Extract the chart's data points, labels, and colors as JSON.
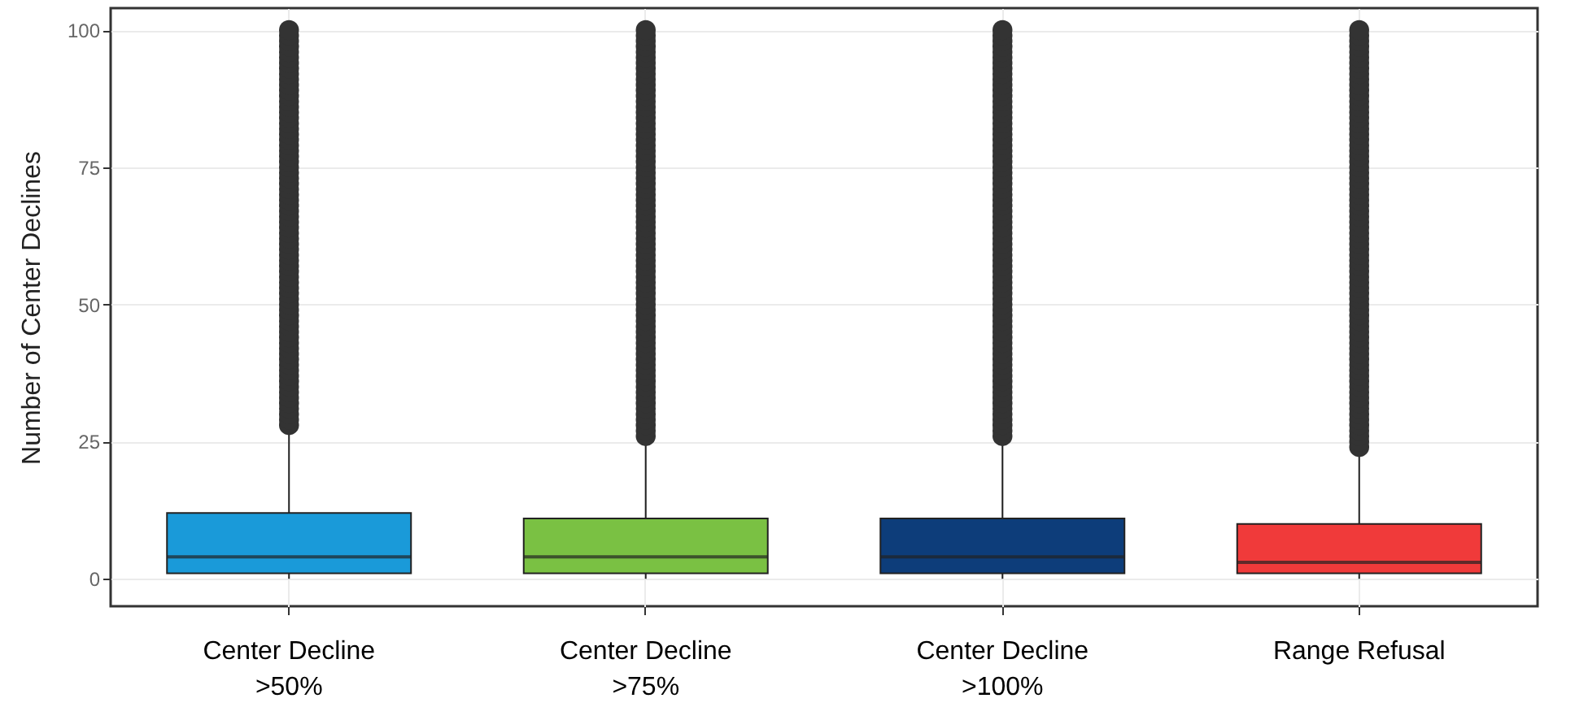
{
  "chart_data": {
    "type": "box",
    "ylabel": "Number of Center Declines",
    "categories": [
      "Center Decline\n>50%",
      "Center Decline\n>75%",
      "Center Decline\n>100%",
      "Range Refusal"
    ],
    "colors": [
      "#1a9ad9",
      "#7ac143",
      "#0d3d7a",
      "#f03a3a"
    ],
    "boxes": [
      {
        "low": 0,
        "q1": 1,
        "median": 4,
        "q3": 12,
        "high": 27,
        "outliers": [
          28,
          29,
          30,
          31,
          32,
          33,
          34,
          35,
          36,
          37,
          38,
          39,
          40,
          41,
          42,
          43,
          44,
          45,
          46,
          47,
          48,
          49,
          50,
          51,
          52,
          53,
          54,
          55,
          56,
          57,
          58,
          59,
          60,
          61,
          62,
          63,
          64,
          65,
          66,
          67,
          68,
          69,
          70,
          71,
          72,
          73,
          74,
          75,
          76,
          77,
          78,
          79,
          80,
          81,
          82,
          83,
          84,
          85,
          86,
          87,
          88,
          89,
          90,
          91,
          92,
          93,
          94,
          95,
          96,
          97,
          98,
          99,
          100
        ]
      },
      {
        "low": 0,
        "q1": 1,
        "median": 4,
        "q3": 11,
        "high": 25,
        "outliers": [
          26,
          27,
          28,
          29,
          30,
          31,
          32,
          33,
          34,
          35,
          36,
          37,
          38,
          39,
          40,
          41,
          42,
          43,
          44,
          45,
          46,
          47,
          48,
          49,
          50,
          51,
          52,
          53,
          54,
          55,
          56,
          57,
          58,
          59,
          60,
          61,
          62,
          63,
          64,
          65,
          66,
          67,
          68,
          69,
          70,
          71,
          72,
          73,
          74,
          75,
          76,
          77,
          78,
          79,
          80,
          81,
          82,
          83,
          84,
          85,
          86,
          87,
          88,
          89,
          90,
          91,
          92,
          93,
          94,
          95,
          96,
          97,
          98,
          99,
          100
        ]
      },
      {
        "low": 0,
        "q1": 1,
        "median": 4,
        "q3": 11,
        "high": 25,
        "outliers": [
          26,
          27,
          28,
          29,
          30,
          31,
          32,
          33,
          34,
          35,
          36,
          37,
          38,
          39,
          40,
          41,
          42,
          43,
          44,
          45,
          46,
          47,
          48,
          49,
          50,
          51,
          52,
          53,
          54,
          55,
          56,
          57,
          58,
          59,
          60,
          61,
          62,
          63,
          64,
          65,
          66,
          67,
          68,
          69,
          70,
          71,
          72,
          73,
          74,
          75,
          76,
          77,
          78,
          79,
          80,
          81,
          82,
          83,
          84,
          85,
          86,
          87,
          88,
          89,
          90,
          91,
          92,
          93,
          94,
          95,
          96,
          97,
          98,
          99,
          100
        ]
      },
      {
        "low": 0,
        "q1": 1,
        "median": 3,
        "q3": 10,
        "high": 23,
        "outliers": [
          24,
          25,
          26,
          27,
          28,
          29,
          30,
          31,
          32,
          33,
          34,
          35,
          36,
          37,
          38,
          39,
          40,
          41,
          42,
          43,
          44,
          45,
          46,
          47,
          48,
          49,
          50,
          51,
          52,
          53,
          54,
          55,
          56,
          57,
          58,
          59,
          60,
          61,
          62,
          63,
          64,
          65,
          66,
          67,
          68,
          69,
          70,
          71,
          72,
          73,
          74,
          75,
          76,
          77,
          78,
          79,
          80,
          81,
          82,
          83,
          84,
          85,
          86,
          87,
          88,
          89,
          90,
          91,
          92,
          93,
          94,
          95,
          96,
          97,
          98,
          99,
          100
        ]
      }
    ],
    "ylim": [
      -5,
      104
    ],
    "yticks": [
      0,
      25,
      50,
      75,
      100
    ],
    "grid": true
  }
}
